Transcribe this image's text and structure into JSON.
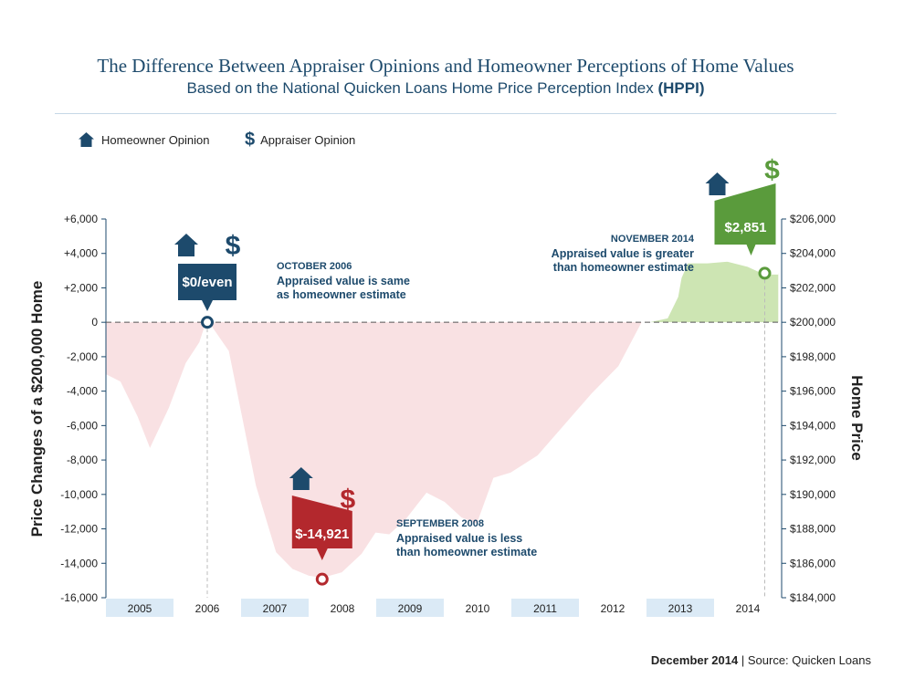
{
  "title": "The Difference Between Appraiser Opinions and Homeowner Perceptions of Home Values",
  "subtitle_main": "Based on the National Quicken Loans Home Price Perception Index",
  "subtitle_bold": "(HPPI)",
  "legend": {
    "homeowner": "Homeowner Opinion",
    "appraiser": "Appraiser Opinion"
  },
  "footer": {
    "date": "December 2014",
    "separator": "|",
    "source": "Source: Quicken Loans"
  },
  "chart_data": {
    "type": "area",
    "title": "The Difference Between Appraiser Opinions and Homeowner Perceptions of Home Values",
    "ylabel": "Price Changes of a $200,000 Home",
    "y2label": "Home  Price",
    "ylim": [
      -16000,
      6000
    ],
    "y2lim": [
      184000,
      206000
    ],
    "yticks": [
      "+6,000",
      "+4,000",
      "+2,000",
      "0",
      "-2,000",
      "-4,000",
      "-6,000",
      "-8,000",
      "-10,000",
      "-12,000",
      "-14,000",
      "-16,000"
    ],
    "y2ticks": [
      "$206,000",
      "$204,000",
      "$202,000",
      "$200,000",
      "$198,000",
      "$196,000",
      "$194,000",
      "$192,000",
      "$190,000",
      "$188,000",
      "$186,000",
      "$184,000"
    ],
    "years": [
      "2005",
      "2006",
      "2007",
      "2008",
      "2009",
      "2010",
      "2011",
      "2012",
      "2013",
      "2014"
    ],
    "x": [
      2005.0,
      2005.2,
      2005.45,
      2005.65,
      2005.95,
      2006.2,
      2006.4,
      2006.5,
      2006.8,
      2007.2,
      2007.5,
      2007.75,
      2008.0,
      2008.2,
      2008.5,
      2008.8,
      2009.0,
      2009.2,
      2009.45,
      2009.75,
      2010.0,
      2010.25,
      2010.5,
      2010.75,
      2011.0,
      2011.4,
      2011.8,
      2012.2,
      2012.6,
      2012.95,
      2013.3,
      2013.45,
      2013.5,
      2013.6,
      2013.9,
      2014.2,
      2014.5,
      2014.75,
      2014.95
    ],
    "values": [
      -3100,
      -3500,
      -5500,
      -7500,
      -5000,
      -2400,
      -1200,
      0,
      -1700,
      -9500,
      -13400,
      -14400,
      -14800,
      -14921,
      -14600,
      -13500,
      -12300,
      -12400,
      -11500,
      -10000,
      -10500,
      -11400,
      -11800,
      -9100,
      -8800,
      -7800,
      -6000,
      -4200,
      -2600,
      0,
      300,
      1500,
      2600,
      3500,
      3500,
      3600,
      3300,
      2851,
      2851
    ],
    "annotations": [
      {
        "date": "OCTOBER 2006",
        "x": 2006.5,
        "value": 0,
        "badge": "$0/even",
        "line1": "Appraised value is same",
        "line2": "as homeowner estimate",
        "color": "#1d4a6c"
      },
      {
        "date": "SEPTEMBER 2008",
        "x": 2008.2,
        "value": -14921,
        "badge": "$-14,921",
        "line1": "Appraised value is less",
        "line2": "than homeowner estimate",
        "color": "#b3282d"
      },
      {
        "date": "NOVEMBER 2014",
        "x": 2014.75,
        "value": 2851,
        "badge": "$2,851",
        "line1": "Appraised value is greater",
        "line2": "than homeowner estimate",
        "color": "#5a9b3c"
      }
    ],
    "colors": {
      "negative_fill": "#f9e1e3",
      "positive_fill": "#cde5b3",
      "navy": "#1d4a6c",
      "red": "#b3282d",
      "green": "#5a9b3c",
      "year_band": "#dbeaf6"
    },
    "grid": false
  }
}
